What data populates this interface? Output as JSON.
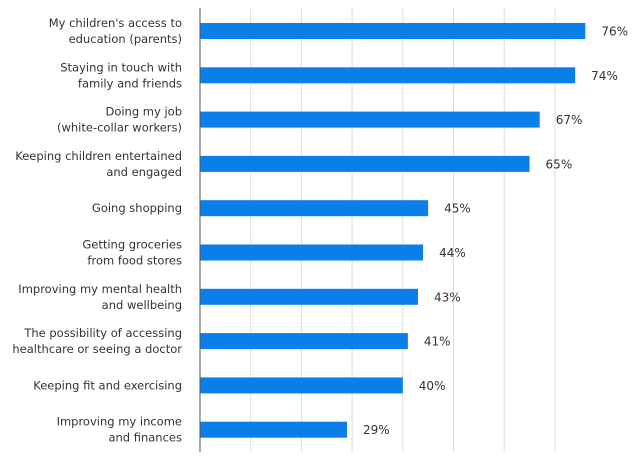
{
  "chart_data": {
    "type": "bar",
    "orientation": "horizontal",
    "title": "",
    "xlabel": "",
    "ylabel": "",
    "xlim": [
      0,
      80
    ],
    "grid": true,
    "grid_step": 10,
    "bar_color": "#0a7fe9",
    "value_suffix": "%",
    "categories": [
      [
        "My children's access to",
        "education (parents)"
      ],
      [
        "Staying in touch with",
        "family and friends"
      ],
      [
        "Doing my job",
        "(white-collar workers)"
      ],
      [
        "Keeping children entertained",
        "and engaged"
      ],
      [
        "Going shopping"
      ],
      [
        "Getting groceries",
        "from food stores"
      ],
      [
        "Improving my mental health",
        "and wellbeing"
      ],
      [
        "The possibility of accessing",
        "healthcare or seeing a doctor"
      ],
      [
        "Keeping fit and exercising"
      ],
      [
        "Improving my income",
        "and finances"
      ]
    ],
    "values": [
      76,
      74,
      67,
      65,
      45,
      44,
      43,
      41,
      40,
      29
    ],
    "data_labels": [
      "76%",
      "74%",
      "67%",
      "65%",
      "45%",
      "44%",
      "43%",
      "41%",
      "40%",
      "29%"
    ]
  }
}
